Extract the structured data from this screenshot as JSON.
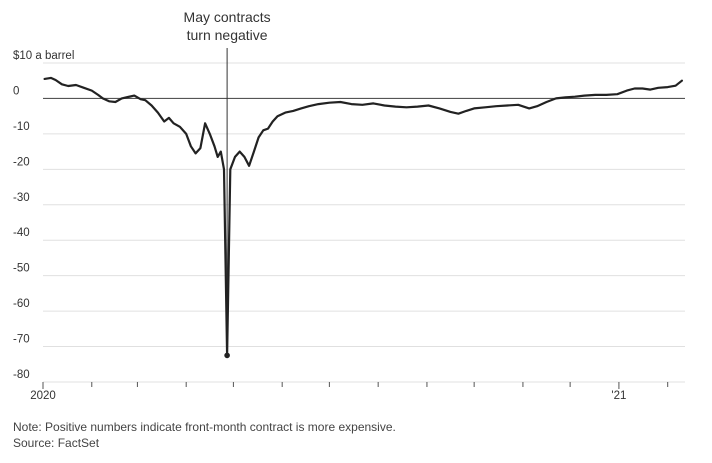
{
  "chart_data": {
    "type": "line",
    "title": "",
    "xlabel": "",
    "ylabel": "",
    "y_unit_label": "$10 a barrel",
    "ylim": [
      -80,
      10
    ],
    "yticks": [
      {
        "value": 10,
        "label": "$10 a barrel"
      },
      {
        "value": 0,
        "label": "0"
      },
      {
        "value": -10,
        "label": "-10"
      },
      {
        "value": -20,
        "label": "-20"
      },
      {
        "value": -30,
        "label": "-30"
      },
      {
        "value": -40,
        "label": "-40"
      },
      {
        "value": -50,
        "label": "-50"
      },
      {
        "value": -60,
        "label": "-60"
      },
      {
        "value": -70,
        "label": "-70"
      },
      {
        "value": -80,
        "label": "-80"
      }
    ],
    "xlim": [
      "2020-01-01",
      "2021-02-12"
    ],
    "x_major_labels": [
      {
        "date": "2020-01-01",
        "label": "2020"
      },
      {
        "date": "2021-01-01",
        "label": "'21"
      }
    ],
    "x_minor_ticks": [
      "2020-02-01",
      "2020-03-01",
      "2020-04-01",
      "2020-05-01",
      "2020-06-01",
      "2020-07-01",
      "2020-08-01",
      "2020-09-01",
      "2020-10-01",
      "2020-11-01",
      "2020-12-01",
      "2021-02-01"
    ],
    "grid": true,
    "series": [
      {
        "color": "#222222",
        "points": [
          [
            "2020-01-02",
            5.5
          ],
          [
            "2020-01-06",
            5.8
          ],
          [
            "2020-01-09",
            5.2
          ],
          [
            "2020-01-13",
            4.0
          ],
          [
            "2020-01-17",
            3.5
          ],
          [
            "2020-01-22",
            3.8
          ],
          [
            "2020-01-27",
            3.0
          ],
          [
            "2020-02-01",
            2.2
          ],
          [
            "2020-02-05",
            1.0
          ],
          [
            "2020-02-08",
            0.0
          ],
          [
            "2020-02-12",
            -0.8
          ],
          [
            "2020-02-16",
            -1.0
          ],
          [
            "2020-02-20",
            0.0
          ],
          [
            "2020-02-24",
            0.4
          ],
          [
            "2020-02-28",
            0.8
          ],
          [
            "2020-03-03",
            -0.2
          ],
          [
            "2020-03-06",
            -0.5
          ],
          [
            "2020-03-10",
            -2.0
          ],
          [
            "2020-03-14",
            -4.0
          ],
          [
            "2020-03-18",
            -6.5
          ],
          [
            "2020-03-21",
            -5.5
          ],
          [
            "2020-03-24",
            -7.0
          ],
          [
            "2020-03-28",
            -8.0
          ],
          [
            "2020-04-01",
            -10.0
          ],
          [
            "2020-04-04",
            -13.5
          ],
          [
            "2020-04-07",
            -15.5
          ],
          [
            "2020-04-10",
            -14.0
          ],
          [
            "2020-04-13",
            -7.0
          ],
          [
            "2020-04-16",
            -10.0
          ],
          [
            "2020-04-19",
            -13.5
          ],
          [
            "2020-04-21",
            -16.5
          ],
          [
            "2020-04-23",
            -15.0
          ],
          [
            "2020-04-25",
            -20.0
          ],
          [
            "2020-04-27",
            -72.5
          ],
          [
            "2020-04-29",
            -20.0
          ],
          [
            "2020-05-02",
            -16.5
          ],
          [
            "2020-05-05",
            -15.0
          ],
          [
            "2020-05-08",
            -16.5
          ],
          [
            "2020-05-11",
            -19.0
          ],
          [
            "2020-05-14",
            -15.0
          ],
          [
            "2020-05-17",
            -11.0
          ],
          [
            "2020-05-20",
            -9.0
          ],
          [
            "2020-05-23",
            -8.5
          ],
          [
            "2020-05-26",
            -6.5
          ],
          [
            "2020-05-29",
            -5.0
          ],
          [
            "2020-06-03",
            -4.0
          ],
          [
            "2020-06-08",
            -3.5
          ],
          [
            "2020-06-13",
            -2.8
          ],
          [
            "2020-06-18",
            -2.2
          ],
          [
            "2020-06-24",
            -1.6
          ],
          [
            "2020-07-01",
            -1.2
          ],
          [
            "2020-07-08",
            -1.0
          ],
          [
            "2020-07-15",
            -1.6
          ],
          [
            "2020-07-22",
            -1.8
          ],
          [
            "2020-07-29",
            -1.4
          ],
          [
            "2020-08-05",
            -2.0
          ],
          [
            "2020-08-12",
            -2.3
          ],
          [
            "2020-08-19",
            -2.5
          ],
          [
            "2020-08-26",
            -2.3
          ],
          [
            "2020-09-02",
            -2.0
          ],
          [
            "2020-09-09",
            -2.8
          ],
          [
            "2020-09-16",
            -3.8
          ],
          [
            "2020-09-21",
            -4.3
          ],
          [
            "2020-09-26",
            -3.5
          ],
          [
            "2020-10-01",
            -2.8
          ],
          [
            "2020-10-08",
            -2.5
          ],
          [
            "2020-10-15",
            -2.2
          ],
          [
            "2020-10-22",
            -2.0
          ],
          [
            "2020-10-29",
            -1.8
          ],
          [
            "2020-11-05",
            -2.8
          ],
          [
            "2020-11-10",
            -2.2
          ],
          [
            "2020-11-16",
            -1.0
          ],
          [
            "2020-11-22",
            0.0
          ],
          [
            "2020-11-28",
            0.3
          ],
          [
            "2020-12-04",
            0.5
          ],
          [
            "2020-12-10",
            0.8
          ],
          [
            "2020-12-17",
            1.0
          ],
          [
            "2020-12-24",
            1.0
          ],
          [
            "2020-12-31",
            1.2
          ],
          [
            "2021-01-06",
            2.2
          ],
          [
            "2021-01-11",
            2.8
          ],
          [
            "2021-01-16",
            2.8
          ],
          [
            "2021-01-21",
            2.5
          ],
          [
            "2021-01-26",
            3.0
          ],
          [
            "2021-02-01",
            3.2
          ],
          [
            "2021-02-06",
            3.6
          ],
          [
            "2021-02-10",
            5.0
          ]
        ]
      }
    ],
    "annotations": [
      {
        "date": "2020-04-27",
        "value": -72.5,
        "lines": [
          "May contracts",
          "turn negative"
        ]
      }
    ]
  },
  "footnotes": {
    "note": "Note: Positive numbers indicate front-month contract is more expensive.",
    "source": "Source: FactSet"
  }
}
